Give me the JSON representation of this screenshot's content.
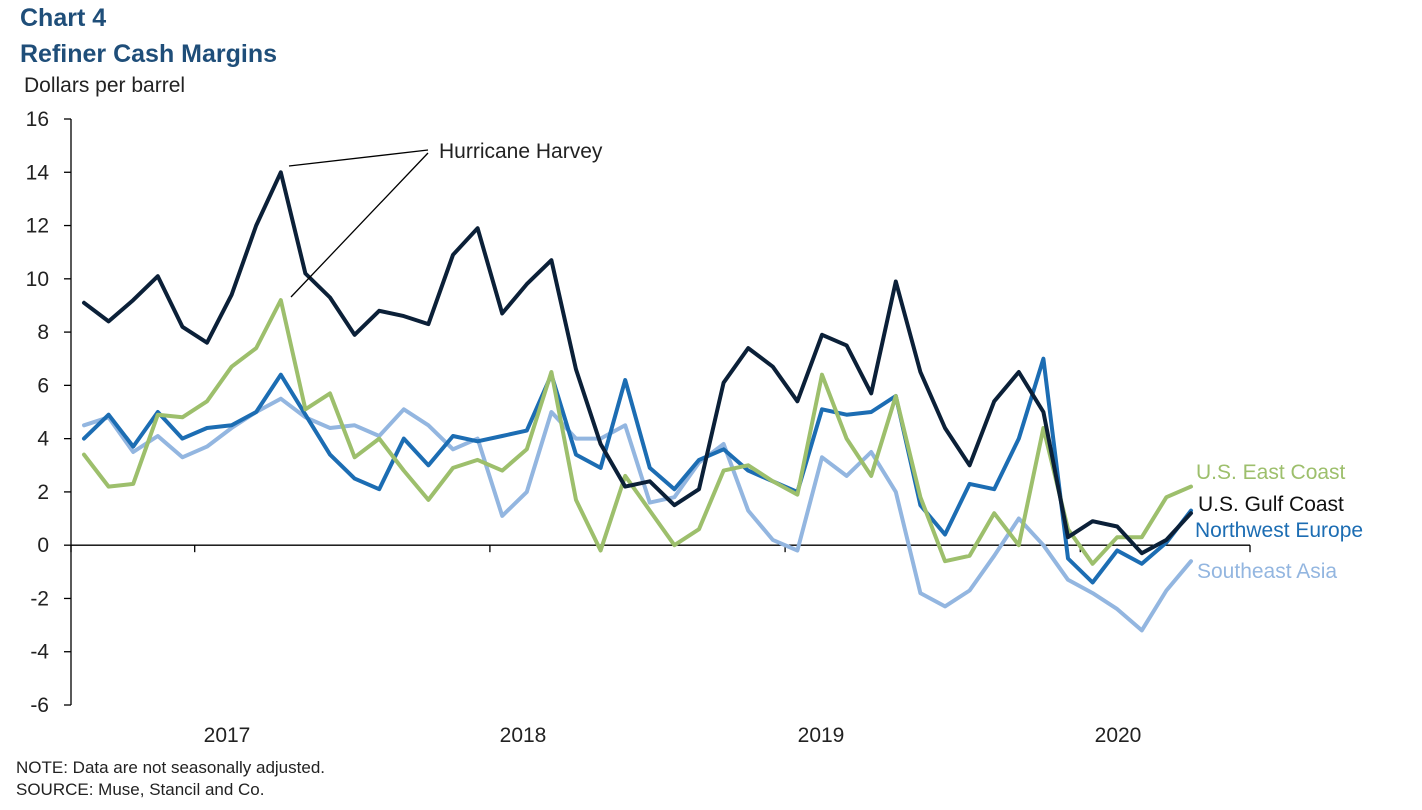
{
  "header": {
    "chart_number": "Chart 4",
    "title": "Refiner Cash Margins"
  },
  "footer": {
    "note": "NOTE: Data are not seasonally adjusted.",
    "source": "SOURCE: Muse, Stancil and Co."
  },
  "colors": {
    "gulf": "#0b2038",
    "east": "#9dbf6c",
    "nwe": "#1c6db3",
    "sea": "#93b6e0"
  },
  "chart_data": {
    "type": "line",
    "title": "Refiner Cash Margins",
    "ylabel": "Dollars per barrel",
    "xlabel": "",
    "ylim": [
      -6,
      16
    ],
    "yticks": [
      16,
      14,
      12,
      10,
      8,
      6,
      4,
      2,
      0,
      -2,
      -4,
      -6
    ],
    "year_labels": [
      "2017",
      "2018",
      "2019",
      "2020"
    ],
    "x_start": "2016-08",
    "x_end": "2020-04",
    "series": [
      {
        "name": "U.S. Gulf Coast",
        "color": "#0b2038",
        "values": [
          9.1,
          8.4,
          9.2,
          10.1,
          8.2,
          7.6,
          9.4,
          12.0,
          14.0,
          10.2,
          9.3,
          7.9,
          8.8,
          8.6,
          8.3,
          10.9,
          11.9,
          8.7,
          9.8,
          10.7,
          6.6,
          3.8,
          2.2,
          2.4,
          1.5,
          2.1,
          6.1,
          7.4,
          6.7,
          5.4,
          7.9,
          7.5,
          5.7,
          9.9,
          6.5,
          4.4,
          3.0,
          5.4,
          6.5,
          5.0,
          0.3,
          0.9,
          0.7,
          -0.3,
          0.2,
          1.2
        ]
      },
      {
        "name": "U.S. East Coast",
        "color": "#9dbf6c",
        "values": [
          3.4,
          2.2,
          2.3,
          4.9,
          4.8,
          5.4,
          6.7,
          7.4,
          9.2,
          5.1,
          5.7,
          3.3,
          4.0,
          2.8,
          1.7,
          2.9,
          3.2,
          2.8,
          3.6,
          6.5,
          1.7,
          -0.2,
          2.6,
          1.3,
          0.0,
          0.6,
          2.8,
          3.0,
          2.4,
          1.9,
          6.4,
          4.0,
          2.6,
          5.6,
          1.8,
          -0.6,
          -0.4,
          1.2,
          0.0,
          4.4,
          0.6,
          -0.7,
          0.3,
          0.3,
          1.8,
          2.2
        ]
      },
      {
        "name": "Northwest Europe",
        "color": "#1c6db3",
        "values": [
          4.0,
          4.9,
          3.7,
          5.0,
          4.0,
          4.4,
          4.5,
          5.0,
          6.4,
          4.9,
          3.4,
          2.5,
          2.1,
          4.0,
          3.0,
          4.1,
          3.9,
          4.1,
          4.3,
          6.4,
          3.4,
          2.9,
          6.2,
          2.9,
          2.1,
          3.2,
          3.6,
          2.8,
          2.4,
          2.0,
          5.1,
          4.9,
          5.0,
          5.6,
          1.5,
          0.4,
          2.3,
          2.1,
          4.0,
          7.0,
          -0.5,
          -1.4,
          -0.2,
          -0.7,
          0.1,
          1.3
        ]
      },
      {
        "name": "Southeast Asia",
        "color": "#93b6e0",
        "values": [
          4.5,
          4.8,
          3.5,
          4.1,
          3.3,
          3.7,
          4.4,
          5.0,
          5.5,
          4.8,
          4.4,
          4.5,
          4.1,
          5.1,
          4.5,
          3.6,
          4.0,
          1.1,
          2.0,
          5.0,
          4.0,
          4.0,
          4.5,
          1.6,
          1.8,
          3.1,
          3.8,
          1.3,
          0.2,
          -0.2,
          3.3,
          2.6,
          3.5,
          2.0,
          -1.8,
          -2.3,
          -1.7,
          -0.4,
          1.0,
          0.0,
          -1.3,
          -1.8,
          -2.4,
          -3.2,
          -1.7,
          -0.6
        ]
      }
    ],
    "annotations": [
      {
        "text": "Hurricane Harvey",
        "targets": [
          "2017-08 U.S. Gulf Coast",
          "2017-08 U.S. East Coast"
        ]
      }
    ]
  }
}
